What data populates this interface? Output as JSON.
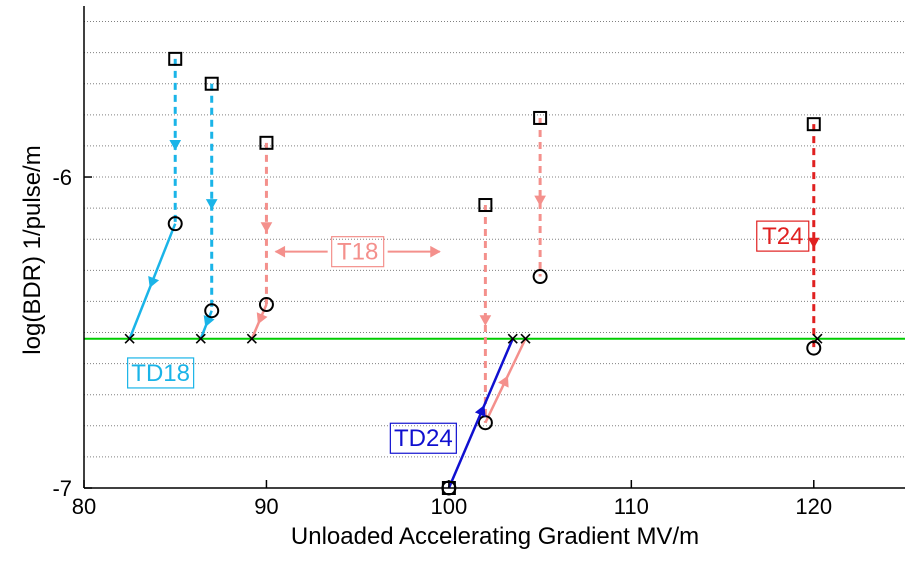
{
  "chart_data": {
    "type": "line",
    "title": "",
    "xlabel": "Unloaded Accelerating Gradient MV/m",
    "ylabel": "log(BDR) 1/pulse/m",
    "xlim": [
      80,
      125
    ],
    "ylim": [
      -7,
      -5.45
    ],
    "x_ticks": [
      80,
      90,
      100,
      110,
      120
    ],
    "y_ticks": [
      -6,
      -7
    ],
    "grid": "horizontal dotted",
    "reference_line": {
      "y": -6.52,
      "color": "#00cc00"
    },
    "colors": {
      "T18": "#f4908c",
      "TD18": "#1ab4e8",
      "T24": "#e02020",
      "TD24": "#1010d0",
      "reference": "#00cc00"
    },
    "series": [
      {
        "name": "TD18",
        "color": "#1ab4e8",
        "dashed_segments": [
          {
            "from": [
              85.0,
              -5.62
            ],
            "to": [
              85.0,
              -6.15
            ]
          },
          {
            "from": [
              87.0,
              -5.7
            ],
            "to": [
              87.0,
              -6.43
            ]
          }
        ],
        "solid_segments": [
          {
            "from": [
              85.0,
              -6.15
            ],
            "to": [
              82.5,
              -6.52
            ]
          },
          {
            "from": [
              87.0,
              -6.43
            ],
            "to": [
              86.4,
              -6.52
            ]
          }
        ],
        "squares": [
          [
            85.0,
            -5.62
          ],
          [
            87.0,
            -5.7
          ]
        ],
        "circles": [
          [
            85.0,
            -6.15
          ],
          [
            87.0,
            -6.43
          ]
        ],
        "crosses": [
          [
            82.5,
            -6.52
          ],
          [
            86.4,
            -6.52
          ]
        ]
      },
      {
        "name": "T18",
        "color": "#f4908c",
        "dashed_segments": [
          {
            "from": [
              90.0,
              -5.89
            ],
            "to": [
              90.0,
              -6.41
            ]
          },
          {
            "from": [
              102.0,
              -6.09
            ],
            "to": [
              102.0,
              -6.79
            ]
          },
          {
            "from": [
              105.0,
              -5.81
            ],
            "to": [
              105.0,
              -6.32
            ]
          }
        ],
        "solid_segments": [
          {
            "from": [
              90.0,
              -6.41
            ],
            "to": [
              89.2,
              -6.52
            ]
          },
          {
            "from": [
              102.0,
              -6.79
            ],
            "to": [
              104.2,
              -6.52
            ]
          }
        ],
        "squares": [
          [
            90.0,
            -5.89
          ],
          [
            102.0,
            -6.09
          ],
          [
            105.0,
            -5.81
          ]
        ],
        "circles": [
          [
            90.0,
            -6.41
          ],
          [
            102.0,
            -6.79
          ],
          [
            105.0,
            -6.32
          ]
        ],
        "crosses": [
          [
            89.2,
            -6.52
          ],
          [
            104.2,
            -6.52
          ]
        ]
      },
      {
        "name": "TD24",
        "color": "#1010d0",
        "dashed_segments": [],
        "solid_segments": [
          {
            "from": [
              100.0,
              -7.0
            ],
            "to": [
              103.5,
              -6.52
            ]
          }
        ],
        "squares": [
          [
            100.0,
            -7.0
          ]
        ],
        "circles": [
          [
            100.0,
            -7.0
          ]
        ],
        "crosses": [
          [
            103.5,
            -6.52
          ]
        ]
      },
      {
        "name": "T24",
        "color": "#e02020",
        "dashed_segments": [
          {
            "from": [
              120.0,
              -5.83
            ],
            "to": [
              120.0,
              -6.55
            ]
          }
        ],
        "solid_segments": [],
        "squares": [
          [
            120.0,
            -5.83
          ]
        ],
        "circles": [
          [
            120.0,
            -6.55
          ]
        ],
        "crosses": [
          [
            120.2,
            -6.52
          ]
        ]
      }
    ],
    "annotations": [
      {
        "text": "TD18",
        "series": "TD18",
        "at": [
          84.2,
          -6.63
        ],
        "boxed": true,
        "color": "#1ab4e8"
      },
      {
        "text": "T18",
        "series": "T18",
        "at": [
          95.0,
          -6.24
        ],
        "boxed": true,
        "color": "#f4908c",
        "double_arrow": [
          90.5,
          99.5
        ]
      },
      {
        "text": "TD24",
        "series": "TD24",
        "at": [
          98.6,
          -6.84
        ],
        "boxed": true,
        "color": "#1010d0"
      },
      {
        "text": "T24",
        "series": "T24",
        "at": [
          118.3,
          -6.19
        ],
        "boxed": true,
        "color": "#e02020"
      }
    ]
  }
}
